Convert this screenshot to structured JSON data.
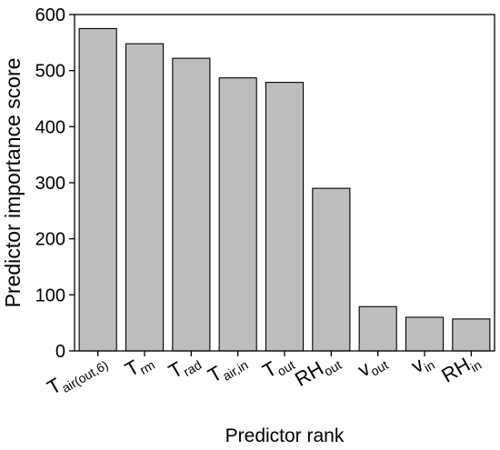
{
  "chart_data": {
    "type": "bar",
    "xlabel": "Predictor rank",
    "ylabel": "Predictor importance score",
    "ylim": [
      0,
      600
    ],
    "yticks": [
      0,
      100,
      200,
      300,
      400,
      500,
      600
    ],
    "grid": false,
    "bar_color": "#bdbdbd",
    "categories": [
      {
        "main": "T",
        "sub": "air(out,6)"
      },
      {
        "main": "T",
        "sub": "rm"
      },
      {
        "main": "T",
        "sub": "rad"
      },
      {
        "main": "T",
        "sub": "air,in"
      },
      {
        "main": "T",
        "sub": "out"
      },
      {
        "main": "RH",
        "sub": "out"
      },
      {
        "main": "v",
        "sub": "out"
      },
      {
        "main": "v",
        "sub": "in"
      },
      {
        "main": "RH",
        "sub": "in"
      }
    ],
    "values": [
      575,
      548,
      522,
      487,
      479,
      290,
      79,
      60,
      57
    ]
  }
}
